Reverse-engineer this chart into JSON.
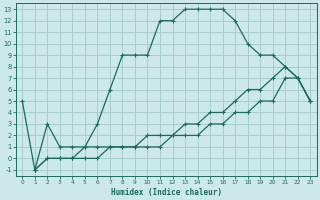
{
  "xlabel": "Humidex (Indice chaleur)",
  "bg_color": "#cce8e8",
  "grid_color": "#a8cccc",
  "line_color": "#1a6b5a",
  "xlim": [
    -0.5,
    23.5
  ],
  "ylim": [
    -1.5,
    13.5
  ],
  "xticks": [
    0,
    1,
    2,
    3,
    4,
    5,
    6,
    7,
    8,
    9,
    10,
    11,
    12,
    13,
    14,
    15,
    16,
    17,
    18,
    19,
    20,
    21,
    22,
    23
  ],
  "yticks": [
    -1,
    0,
    1,
    2,
    3,
    4,
    5,
    6,
    7,
    8,
    9,
    10,
    11,
    12,
    13
  ],
  "upper_x": [
    0,
    1,
    2,
    3,
    4,
    5,
    6,
    7,
    8,
    9,
    10,
    11,
    12,
    13,
    14,
    15,
    16,
    17,
    18,
    19,
    20,
    21,
    22,
    23
  ],
  "upper_y": [
    5,
    -1,
    3,
    1,
    1,
    1,
    3,
    6,
    9,
    9,
    9,
    12,
    12,
    13,
    13,
    13,
    13,
    12,
    10,
    9,
    9,
    8,
    7,
    5
  ],
  "mid_x": [
    1,
    2,
    3,
    4,
    5,
    6,
    7,
    8,
    9,
    10,
    11,
    12,
    13,
    14,
    15,
    16,
    17,
    18,
    19,
    20,
    21,
    22,
    23
  ],
  "mid_y": [
    -1,
    0,
    0,
    0,
    1,
    1,
    1,
    1,
    1,
    2,
    2,
    2,
    3,
    3,
    4,
    4,
    5,
    6,
    6,
    7,
    8,
    7,
    5
  ],
  "lower_x": [
    1,
    2,
    3,
    4,
    5,
    6,
    7,
    8,
    9,
    10,
    11,
    12,
    13,
    14,
    15,
    16,
    17,
    18,
    19,
    20,
    21,
    22,
    23
  ],
  "lower_y": [
    -1,
    0,
    0,
    0,
    0,
    0,
    1,
    1,
    1,
    1,
    1,
    2,
    2,
    2,
    3,
    3,
    4,
    4,
    5,
    5,
    7,
    7,
    5
  ]
}
